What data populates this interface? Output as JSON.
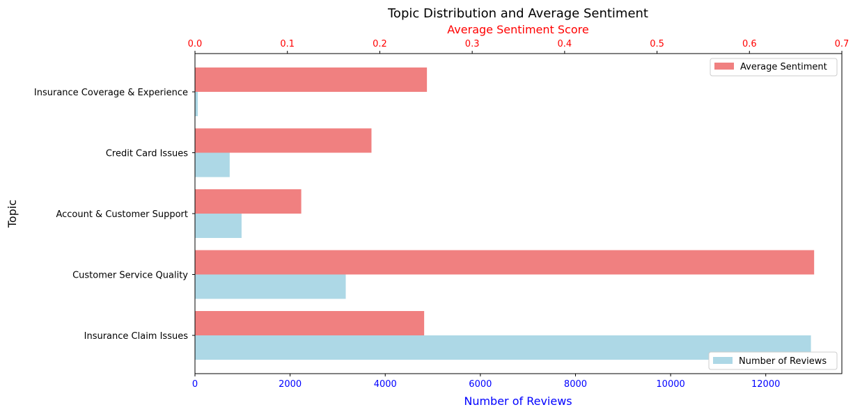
{
  "chart_data": {
    "type": "bar",
    "orientation": "horizontal",
    "title": "Topic Distribution and Average Sentiment",
    "ylabel": "Topic",
    "categories": [
      "Insurance Claim Issues",
      "Customer Service Quality",
      "Account & Customer Support",
      "Credit Card Issues",
      "Insurance Coverage & Experience"
    ],
    "bottom_axis": {
      "label": "Number of Reviews",
      "color": "#0000ff",
      "lim": [
        0,
        13600
      ],
      "ticks": [
        "0",
        "2000",
        "4000",
        "6000",
        "8000",
        "10000",
        "12000"
      ]
    },
    "top_axis": {
      "label": "Average Sentiment Score",
      "color": "#ff0000",
      "lim": [
        0,
        0.7
      ],
      "ticks": [
        "0.0",
        "0.1",
        "0.2",
        "0.3",
        "0.4",
        "0.5",
        "0.6",
        "0.7"
      ]
    },
    "series": [
      {
        "name": "Number of Reviews",
        "axis": "bottom",
        "color": "#add8e6",
        "values": [
          12950,
          3170,
          980,
          730,
          60
        ]
      },
      {
        "name": "Average Sentiment",
        "axis": "top",
        "color": "#f08080",
        "values": [
          0.248,
          0.67,
          0.115,
          0.191,
          0.251
        ]
      }
    ],
    "legends": [
      {
        "series": "Average Sentiment",
        "position": "upper right"
      },
      {
        "series": "Number of Reviews",
        "position": "lower right"
      }
    ],
    "grid": false
  }
}
